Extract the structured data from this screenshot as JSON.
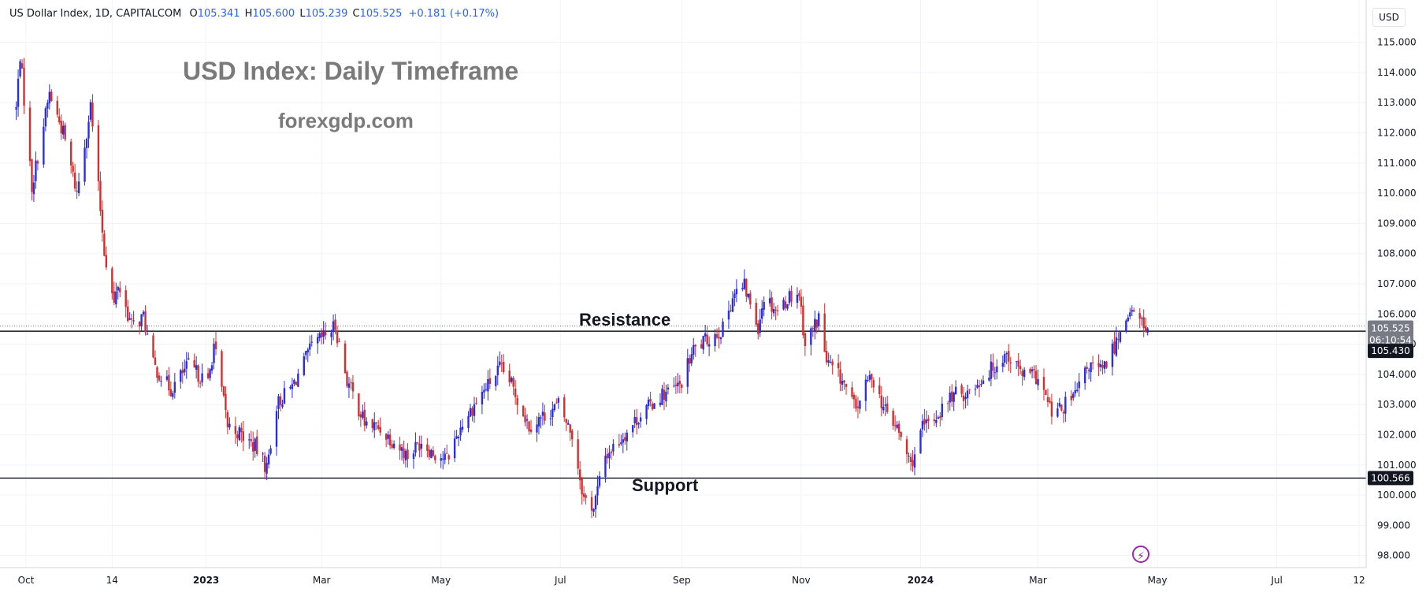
{
  "header": {
    "symbol": "US Dollar Index, 1D, CAPITALCOM",
    "o_label": "O",
    "o_value": "105.341",
    "h_label": "H",
    "h_value": "105.600",
    "l_label": "L",
    "l_value": "105.239",
    "c_label": "C",
    "c_value": "105.525",
    "change": "+0.181 (+0.17%)"
  },
  "title": "USD Index: Daily Timeframe",
  "site": "forexgdp.com",
  "currency_button": "USD",
  "annotations": {
    "resistance": "Resistance",
    "support": "Support"
  },
  "price_labels": {
    "current": "105.525",
    "countdown": "06:10:54",
    "resistance": "105.430",
    "support": "100.566"
  },
  "colors": {
    "up": "#2a2ee0",
    "down": "#d32f2f",
    "line": "#131722",
    "grid": "#f0f3fa",
    "axis_text": "#131722",
    "current_bg": "#787b86",
    "badge_bg": "#131722"
  },
  "chart_data": {
    "type": "candlestick",
    "title": "USD Index: Daily Timeframe",
    "y_axis": {
      "ticks": [
        "115.000",
        "114.000",
        "113.000",
        "112.000",
        "111.000",
        "110.000",
        "109.000",
        "108.000",
        "107.000",
        "106.000",
        "105.000",
        "104.000",
        "103.000",
        "102.000",
        "101.000",
        "100.000",
        "99.000",
        "98.000"
      ],
      "range": [
        97.6,
        116.4
      ]
    },
    "x_axis": {
      "ticks": [
        {
          "label": "Oct",
          "date": "2022-10-01",
          "bold": false
        },
        {
          "label": "14",
          "date": "2022-11-14",
          "bold": false
        },
        {
          "label": "2023",
          "date": "2023-01-01",
          "bold": true
        },
        {
          "label": "Mar",
          "date": "2023-03-01",
          "bold": false
        },
        {
          "label": "May",
          "date": "2023-05-01",
          "bold": false
        },
        {
          "label": "Jul",
          "date": "2023-07-01",
          "bold": false
        },
        {
          "label": "Sep",
          "date": "2023-09-01",
          "bold": false
        },
        {
          "label": "Nov",
          "date": "2023-11-01",
          "bold": false
        },
        {
          "label": "2024",
          "date": "2024-01-01",
          "bold": true
        },
        {
          "label": "Mar",
          "date": "2024-03-01",
          "bold": false
        },
        {
          "label": "May",
          "date": "2024-05-01",
          "bold": false
        },
        {
          "label": "Jul",
          "date": "2024-07-01",
          "bold": false
        },
        {
          "label": "12",
          "date": "2024-08-12",
          "bold": false
        }
      ]
    },
    "horizontal_lines": [
      {
        "name": "Resistance",
        "value": 105.43
      },
      {
        "name": "Support",
        "value": 100.566
      }
    ],
    "current_price": 105.525,
    "path": [
      [
        "2022-09-26",
        112.8
      ],
      [
        "2022-09-28",
        114.6
      ],
      [
        "2022-10-04",
        110.2
      ],
      [
        "2022-10-13",
        113.3
      ],
      [
        "2022-10-20",
        112.0
      ],
      [
        "2022-10-27",
        110.0
      ],
      [
        "2022-11-03",
        112.9
      ],
      [
        "2022-11-10",
        108.1
      ],
      [
        "2022-11-15",
        106.3
      ],
      [
        "2022-11-17",
        107.0
      ],
      [
        "2022-11-24",
        105.6
      ],
      [
        "2022-11-30",
        105.9
      ],
      [
        "2022-12-05",
        104.3
      ],
      [
        "2022-12-14",
        103.5
      ],
      [
        "2022-12-23",
        104.3
      ],
      [
        "2023-01-02",
        103.7
      ],
      [
        "2023-01-05",
        105.0
      ],
      [
        "2023-01-12",
        102.3
      ],
      [
        "2023-01-17",
        102.1
      ],
      [
        "2023-01-26",
        101.6
      ],
      [
        "2023-02-01",
        100.9
      ],
      [
        "2023-02-06",
        103.0
      ],
      [
        "2023-02-14",
        103.6
      ],
      [
        "2023-02-24",
        104.9
      ],
      [
        "2023-03-08",
        105.6
      ],
      [
        "2023-03-14",
        103.8
      ],
      [
        "2023-03-23",
        102.4
      ],
      [
        "2023-03-31",
        102.2
      ],
      [
        "2023-04-05",
        101.9
      ],
      [
        "2023-04-14",
        101.3
      ],
      [
        "2023-04-21",
        101.8
      ],
      [
        "2023-04-27",
        101.4
      ],
      [
        "2023-05-04",
        101.2
      ],
      [
        "2023-05-12",
        102.4
      ],
      [
        "2023-05-19",
        103.1
      ],
      [
        "2023-05-31",
        104.2
      ],
      [
        "2023-06-05",
        103.8
      ],
      [
        "2023-06-15",
        102.3
      ],
      [
        "2023-06-22",
        102.6
      ],
      [
        "2023-06-30",
        103.0
      ],
      [
        "2023-07-07",
        102.0
      ],
      [
        "2023-07-13",
        99.9
      ],
      [
        "2023-07-18",
        99.6
      ],
      [
        "2023-07-24",
        101.3
      ],
      [
        "2023-07-31",
        101.8
      ],
      [
        "2023-08-10",
        102.6
      ],
      [
        "2023-08-21",
        103.3
      ],
      [
        "2023-08-31",
        103.6
      ],
      [
        "2023-09-07",
        104.8
      ],
      [
        "2023-09-15",
        105.2
      ],
      [
        "2023-09-22",
        105.5
      ],
      [
        "2023-09-27",
        106.6
      ],
      [
        "2023-10-03",
        106.9
      ],
      [
        "2023-10-10",
        105.6
      ],
      [
        "2023-10-13",
        106.6
      ],
      [
        "2023-10-20",
        106.1
      ],
      [
        "2023-10-26",
        106.6
      ],
      [
        "2023-10-31",
        106.7
      ],
      [
        "2023-11-03",
        105.0
      ],
      [
        "2023-11-10",
        105.9
      ],
      [
        "2023-11-14",
        104.4
      ],
      [
        "2023-11-22",
        103.8
      ],
      [
        "2023-11-29",
        102.8
      ],
      [
        "2023-12-01",
        103.2
      ],
      [
        "2023-12-07",
        104.0
      ],
      [
        "2023-12-13",
        102.9
      ],
      [
        "2023-12-20",
        102.2
      ],
      [
        "2023-12-27",
        101.0
      ],
      [
        "2024-01-02",
        102.2
      ],
      [
        "2024-01-09",
        102.6
      ],
      [
        "2024-01-17",
        103.3
      ],
      [
        "2024-01-25",
        103.4
      ],
      [
        "2024-02-02",
        103.9
      ],
      [
        "2024-02-14",
        104.7
      ],
      [
        "2024-02-22",
        104.0
      ],
      [
        "2024-03-01",
        103.9
      ],
      [
        "2024-03-08",
        102.7
      ],
      [
        "2024-03-12",
        102.8
      ],
      [
        "2024-03-20",
        103.3
      ],
      [
        "2024-03-27",
        104.3
      ],
      [
        "2024-04-03",
        104.1
      ],
      [
        "2024-04-10",
        105.1
      ],
      [
        "2024-04-16",
        106.1
      ],
      [
        "2024-04-22",
        105.8
      ],
      [
        "2024-04-26",
        105.5
      ]
    ]
  }
}
